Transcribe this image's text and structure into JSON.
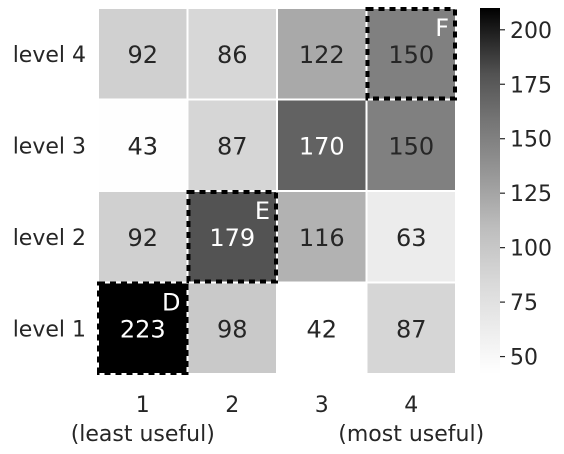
{
  "chart_data": {
    "type": "heatmap",
    "title": "",
    "xlabel": "",
    "ylabel": "",
    "x_categories": [
      "1",
      "2",
      "3",
      "4"
    ],
    "x_sublabels": [
      "(least useful)",
      "",
      "",
      "(most useful)"
    ],
    "y_categories": [
      "level 1",
      "level 2",
      "level 3",
      "level 4"
    ],
    "values": [
      [
        223,
        98,
        42,
        87
      ],
      [
        92,
        179,
        116,
        63
      ],
      [
        43,
        87,
        170,
        150
      ],
      [
        92,
        86,
        122,
        150
      ]
    ],
    "colormap": "Greys",
    "color_range": [
      42,
      210
    ],
    "colorbar_ticks": [
      50,
      75,
      100,
      125,
      150,
      175,
      200
    ],
    "colors": {
      "low": "#ffffff",
      "high": "#000000",
      "highlight_border": "#000000",
      "annotation": "#ffffff"
    },
    "annotations": [
      {
        "label": "D",
        "row": 0,
        "col": 0
      },
      {
        "label": "E",
        "row": 1,
        "col": 1
      },
      {
        "label": "F",
        "row": 3,
        "col": 3
      }
    ],
    "grid": true,
    "legend": "colorbar-right"
  }
}
